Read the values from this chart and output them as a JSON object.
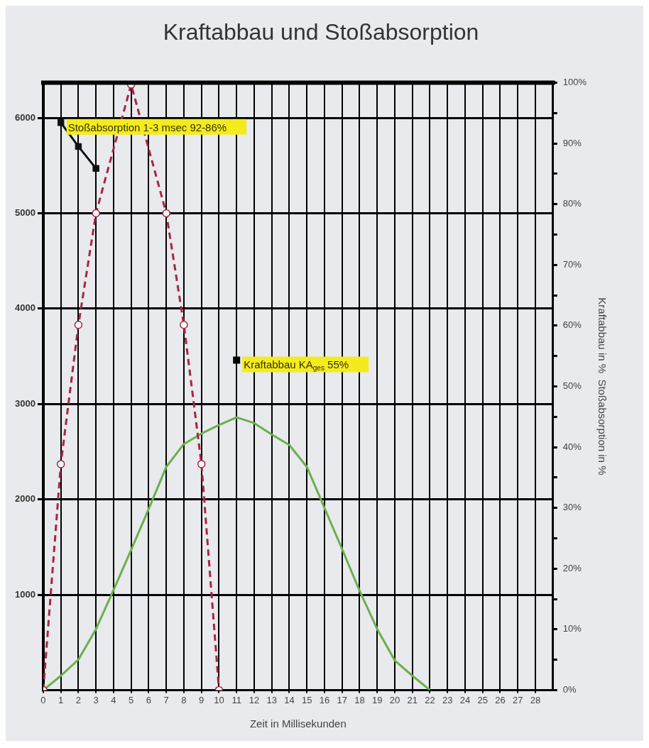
{
  "chart_data": {
    "type": "line",
    "title": "Kraftabbau und Stoßabsorption",
    "xlabel": "Zeit in Millisekunden",
    "y2label": "Kraftabbau in %  Stoßabsorption in %",
    "x": [
      0,
      1,
      2,
      3,
      4,
      5,
      6,
      7,
      8,
      9,
      10,
      11,
      12,
      13,
      14,
      15,
      16,
      17,
      18,
      19,
      20,
      21,
      22
    ],
    "series": [
      {
        "color": "#a8243f",
        "marker": "circle",
        "line_style": "dashed",
        "x": [
          0,
          1,
          2,
          3,
          5,
          7,
          8,
          9,
          10
        ],
        "values": [
          0,
          2370,
          3830,
          5000,
          6350,
          5000,
          3830,
          2370,
          0
        ]
      },
      {
        "color": "#6ab04c",
        "marker": "none",
        "line_style": "solid",
        "values": [
          0,
          150,
          320,
          640,
          1050,
          1470,
          1900,
          2340,
          2580,
          2690,
          2780,
          2860,
          2800,
          2680,
          2570,
          2340,
          1910,
          1480,
          1040,
          640,
          310,
          150,
          0
        ]
      },
      {
        "color": "#111111",
        "marker": "square",
        "line_style": "solid",
        "x": [
          1,
          2,
          3
        ],
        "values": [
          5950,
          5700,
          5470
        ]
      }
    ],
    "xlim": [
      0,
      29
    ],
    "xticks": [
      0,
      1,
      2,
      3,
      4,
      5,
      6,
      7,
      8,
      9,
      10,
      11,
      12,
      13,
      14,
      15,
      16,
      17,
      18,
      19,
      20,
      21,
      22,
      23,
      24,
      25,
      26,
      27,
      28
    ],
    "ylim": [
      0,
      6370
    ],
    "yticks": [
      1000,
      2000,
      3000,
      4000,
      5000,
      6000
    ],
    "y2lim": [
      0,
      100
    ],
    "y2ticks": [
      {
        "value": 0,
        "label": "0%"
      },
      {
        "value": 5,
        "label": null
      },
      {
        "value": 10,
        "label": "10%"
      },
      {
        "value": 15,
        "label": null
      },
      {
        "value": 20,
        "label": "20%"
      },
      {
        "value": 25,
        "label": null
      },
      {
        "value": 30,
        "label": "30%"
      },
      {
        "value": 35,
        "label": null
      },
      {
        "value": 40,
        "label": "40%"
      },
      {
        "value": 45,
        "label": null
      },
      {
        "value": 50,
        "label": "50%"
      },
      {
        "value": 55,
        "label": null
      },
      {
        "value": 60,
        "label": "60%"
      },
      {
        "value": 65,
        "label": null
      },
      {
        "value": 70,
        "label": "70%"
      },
      {
        "value": 75,
        "label": null
      },
      {
        "value": 80,
        "label": "80%"
      },
      {
        "value": 85,
        "label": null
      },
      {
        "value": 90,
        "label": "90%"
      },
      {
        "value": 95,
        "label": null
      },
      {
        "value": 100,
        "label": "100%"
      }
    ],
    "grid": true,
    "legend": false,
    "annotations": [
      {
        "text": "Stoßabsorption 1-3 msec 92-86%",
        "x": 1,
        "y": 5950
      },
      {
        "text": "Kraftabbau KA$_{ges}$ 55%",
        "x": 11,
        "y": 3460
      }
    ]
  }
}
